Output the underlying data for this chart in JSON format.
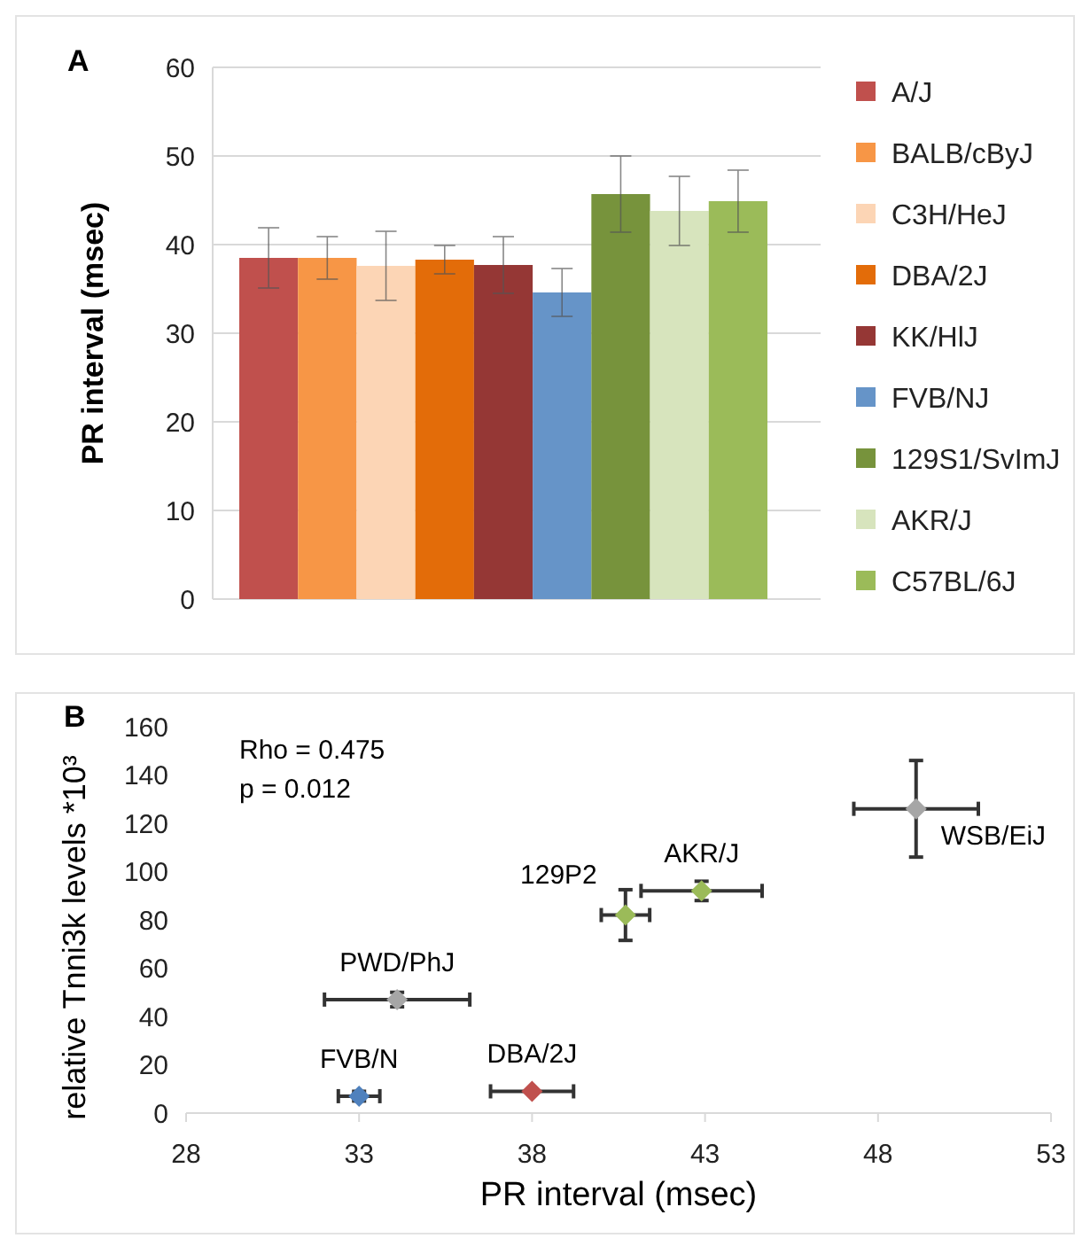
{
  "chart_data": [
    {
      "type": "bar",
      "title": "A",
      "ylabel": "PR interval (msec)",
      "categories": [
        null
      ],
      "series": [
        {
          "name": "A/J",
          "color": "#c0504d",
          "values": [
            38.5
          ],
          "errors": [
            3.4
          ]
        },
        {
          "name": "BALB/cByJ",
          "color": "#f79646",
          "values": [
            38.5
          ],
          "errors": [
            2.4
          ]
        },
        {
          "name": "C3H/HeJ",
          "color": "#fcd5b5",
          "values": [
            37.6
          ],
          "errors": [
            3.9
          ]
        },
        {
          "name": "DBA/2J",
          "color": "#e36c09",
          "values": [
            38.3
          ],
          "errors": [
            1.6
          ]
        },
        {
          "name": "KK/HlJ",
          "color": "#953735",
          "values": [
            37.7
          ],
          "errors": [
            3.2
          ]
        },
        {
          "name": "FVB/NJ",
          "color": "#6694c8",
          "values": [
            34.6
          ],
          "errors": [
            2.7
          ]
        },
        {
          "name": "129S1/SvImJ",
          "color": "#77933c",
          "values": [
            45.7
          ],
          "errors": [
            4.3
          ]
        },
        {
          "name": "AKR/J",
          "color": "#d7e4bd",
          "values": [
            43.8
          ],
          "errors": [
            3.9
          ]
        },
        {
          "name": "C57BL/6J",
          "color": "#9bbb59",
          "values": [
            44.9
          ],
          "errors": [
            3.5
          ]
        }
      ],
      "ylim": [
        0,
        60
      ],
      "yticks": [
        0,
        10,
        20,
        30,
        40,
        50,
        60
      ],
      "grid": "y",
      "legend": "right"
    },
    {
      "type": "scatter",
      "title": "B",
      "xlabel": "PR interval (msec)",
      "ylabel": "relative Tnni3k levels *10³",
      "marker": "diamond",
      "xlim": [
        28,
        53
      ],
      "xticks": [
        28,
        33,
        38,
        43,
        48,
        53
      ],
      "ylim": [
        0,
        160
      ],
      "yticks": [
        0,
        20,
        40,
        60,
        80,
        100,
        120,
        140,
        160
      ],
      "annotations": [
        "Rho = 0.475",
        "p = 0.012"
      ],
      "series": [
        {
          "name": "FVB/N",
          "color": "#4f81bd",
          "x": [
            33.0
          ],
          "values": [
            7
          ],
          "errors": [
            2
          ],
          "xerrors": [
            0.6
          ]
        },
        {
          "name": "DBA/2J",
          "color": "#c0504d",
          "x": [
            38.0
          ],
          "values": [
            9
          ],
          "errors": [
            null
          ],
          "xerrors": [
            1.2
          ]
        },
        {
          "name": "PWD/PhJ",
          "color": "#a6a6a6",
          "x": [
            34.1
          ],
          "values": [
            47
          ],
          "errors": [
            3
          ],
          "xerrors": [
            2.1
          ]
        },
        {
          "name": "129P2",
          "color": "#9bbb59",
          "x": [
            40.7
          ],
          "values": [
            82
          ],
          "errors": [
            10.5
          ],
          "xerrors": [
            0.7
          ]
        },
        {
          "name": "AKR/J",
          "color": "#9bbb59",
          "x": [
            42.9
          ],
          "values": [
            92
          ],
          "errors": [
            4
          ],
          "xerrors": [
            1.75
          ]
        },
        {
          "name": "WSB/EiJ",
          "color": "#a6a6a6",
          "x": [
            49.1
          ],
          "values": [
            126
          ],
          "errors": [
            20
          ],
          "xerrors": [
            1.8
          ]
        }
      ]
    }
  ]
}
